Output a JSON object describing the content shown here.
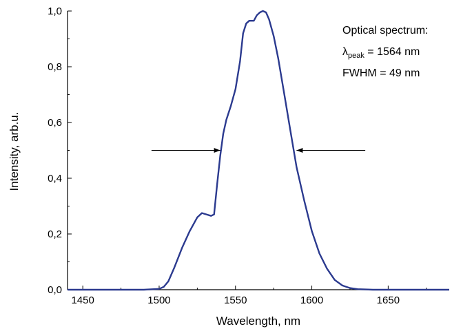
{
  "chart_data": {
    "type": "line",
    "title": "",
    "xlabel": "Wavelength, nm",
    "ylabel": "Intensity, arb.u.",
    "xlim": [
      1440,
      1690
    ],
    "ylim": [
      0.0,
      1.0
    ],
    "x_ticks": [
      1450,
      1500,
      1550,
      1600,
      1650
    ],
    "x_tick_labels": [
      "1450",
      "1500",
      "1550",
      "1600",
      "1650"
    ],
    "y_ticks": [
      0.0,
      0.2,
      0.4,
      0.6,
      0.8,
      1.0
    ],
    "y_tick_labels": [
      "0,0",
      "0,2",
      "0,4",
      "0,6",
      "0,8",
      "1,0"
    ],
    "grid": false,
    "line_color": "#2b3a8f",
    "series": [
      {
        "x": [
          1440,
          1460,
          1480,
          1490,
          1500,
          1503,
          1506,
          1510,
          1515,
          1520,
          1525,
          1528,
          1531,
          1534,
          1536,
          1538,
          1540,
          1542,
          1544,
          1547,
          1550,
          1553,
          1555,
          1557,
          1559,
          1560,
          1562,
          1564,
          1566,
          1568,
          1570,
          1572,
          1575,
          1578,
          1582,
          1586,
          1590,
          1595,
          1600,
          1605,
          1610,
          1615,
          1620,
          1625,
          1630,
          1640,
          1660,
          1690
        ],
        "y": [
          0.0,
          0.0,
          0.0,
          0.0,
          0.003,
          0.01,
          0.03,
          0.08,
          0.15,
          0.21,
          0.26,
          0.275,
          0.27,
          0.265,
          0.27,
          0.38,
          0.48,
          0.56,
          0.61,
          0.66,
          0.72,
          0.82,
          0.92,
          0.955,
          0.965,
          0.965,
          0.965,
          0.985,
          0.995,
          1.0,
          0.995,
          0.97,
          0.91,
          0.83,
          0.7,
          0.57,
          0.44,
          0.32,
          0.21,
          0.13,
          0.075,
          0.035,
          0.015,
          0.006,
          0.002,
          0.0,
          0.0,
          0.0
        ]
      }
    ],
    "arrows": [
      {
        "from_x": 1495,
        "to_x": 1540,
        "y": 0.5
      },
      {
        "from_x": 1635,
        "to_x": 1590,
        "y": 0.5
      }
    ],
    "annotation": {
      "line1": "Optical spectrum:",
      "lambda_symbol": "λ",
      "lambda_sub": "peak",
      "lambda_value": " = 1564 nm",
      "line3": "FWHM = 49 nm"
    }
  }
}
